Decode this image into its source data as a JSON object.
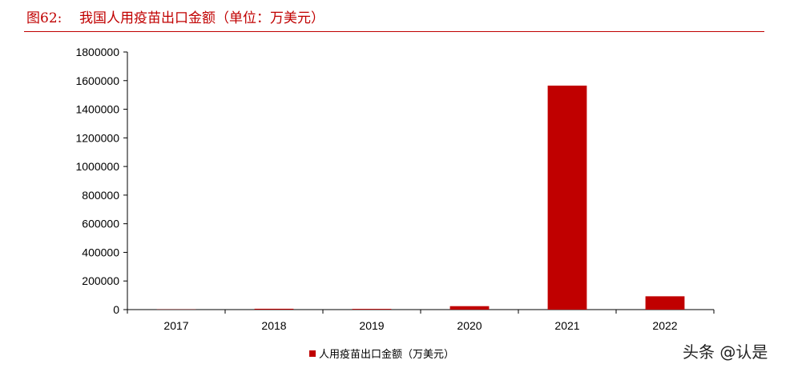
{
  "figure": {
    "title": "图62:    我国人用疫苗出口金额（单位：万美元）"
  },
  "chart_data": {
    "type": "bar",
    "title": "我国人用疫苗出口金额（单位：万美元）",
    "categories": [
      "2017",
      "2018",
      "2019",
      "2020",
      "2021",
      "2022"
    ],
    "series": [
      {
        "name": "人用疫苗出口金额（万美元）",
        "values": [
          1500,
          6000,
          5000,
          24000,
          1565000,
          93000
        ],
        "color": "#c00000"
      }
    ],
    "ylim": [
      0,
      1800000
    ],
    "yticks": [
      "0",
      "200000",
      "400000",
      "600000",
      "800000",
      "1000000",
      "1200000",
      "1400000",
      "1600000",
      "1800000"
    ],
    "xlabel": "",
    "ylabel": "",
    "grid": false,
    "legend_position": "bottom"
  },
  "watermark": "头条 @认是"
}
